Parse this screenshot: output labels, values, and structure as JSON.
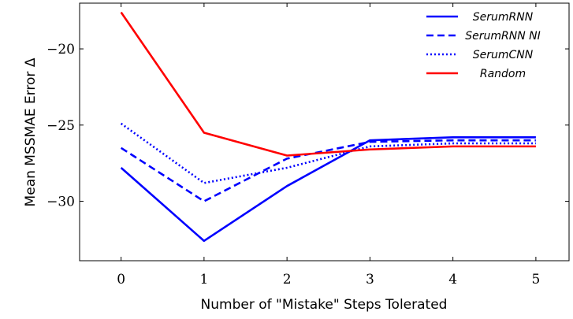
{
  "chart_data": {
    "type": "line",
    "xlabel": "Number of \"Mistake\" Steps Tolerated",
    "ylabel": "Mean MSSMAE Error  Δ",
    "x": [
      0,
      1,
      2,
      3,
      4,
      5
    ],
    "xticks": [
      "0",
      "1",
      "2",
      "3",
      "4",
      "5"
    ],
    "yticks": [
      "−20",
      "−25",
      "−30"
    ],
    "ytick_values": [
      -20,
      -25,
      -30
    ],
    "xlim": [
      -0.5,
      5.4
    ],
    "ylim": [
      -33.9,
      -17.0
    ],
    "grid": false,
    "legend": "top-right",
    "series": [
      {
        "name": "SerumRNN",
        "values": [
          -27.8,
          -32.6,
          -29.0,
          -26.0,
          -25.8,
          -25.8
        ],
        "color": "#0000ff",
        "dash": "solid"
      },
      {
        "name": "SerumRNN NI",
        "values": [
          -26.5,
          -30.0,
          -27.2,
          -26.1,
          -26.0,
          -26.0
        ],
        "color": "#0000ff",
        "dash": "dashed"
      },
      {
        "name": "SerumCNN",
        "values": [
          -24.9,
          -28.8,
          -27.8,
          -26.4,
          -26.2,
          -26.2
        ],
        "color": "#0000ff",
        "dash": "dotted"
      },
      {
        "name": "Random",
        "values": [
          -17.6,
          -25.5,
          -27.0,
          -26.6,
          -26.4,
          -26.4
        ],
        "color": "#ff0000",
        "dash": "solid"
      }
    ]
  }
}
